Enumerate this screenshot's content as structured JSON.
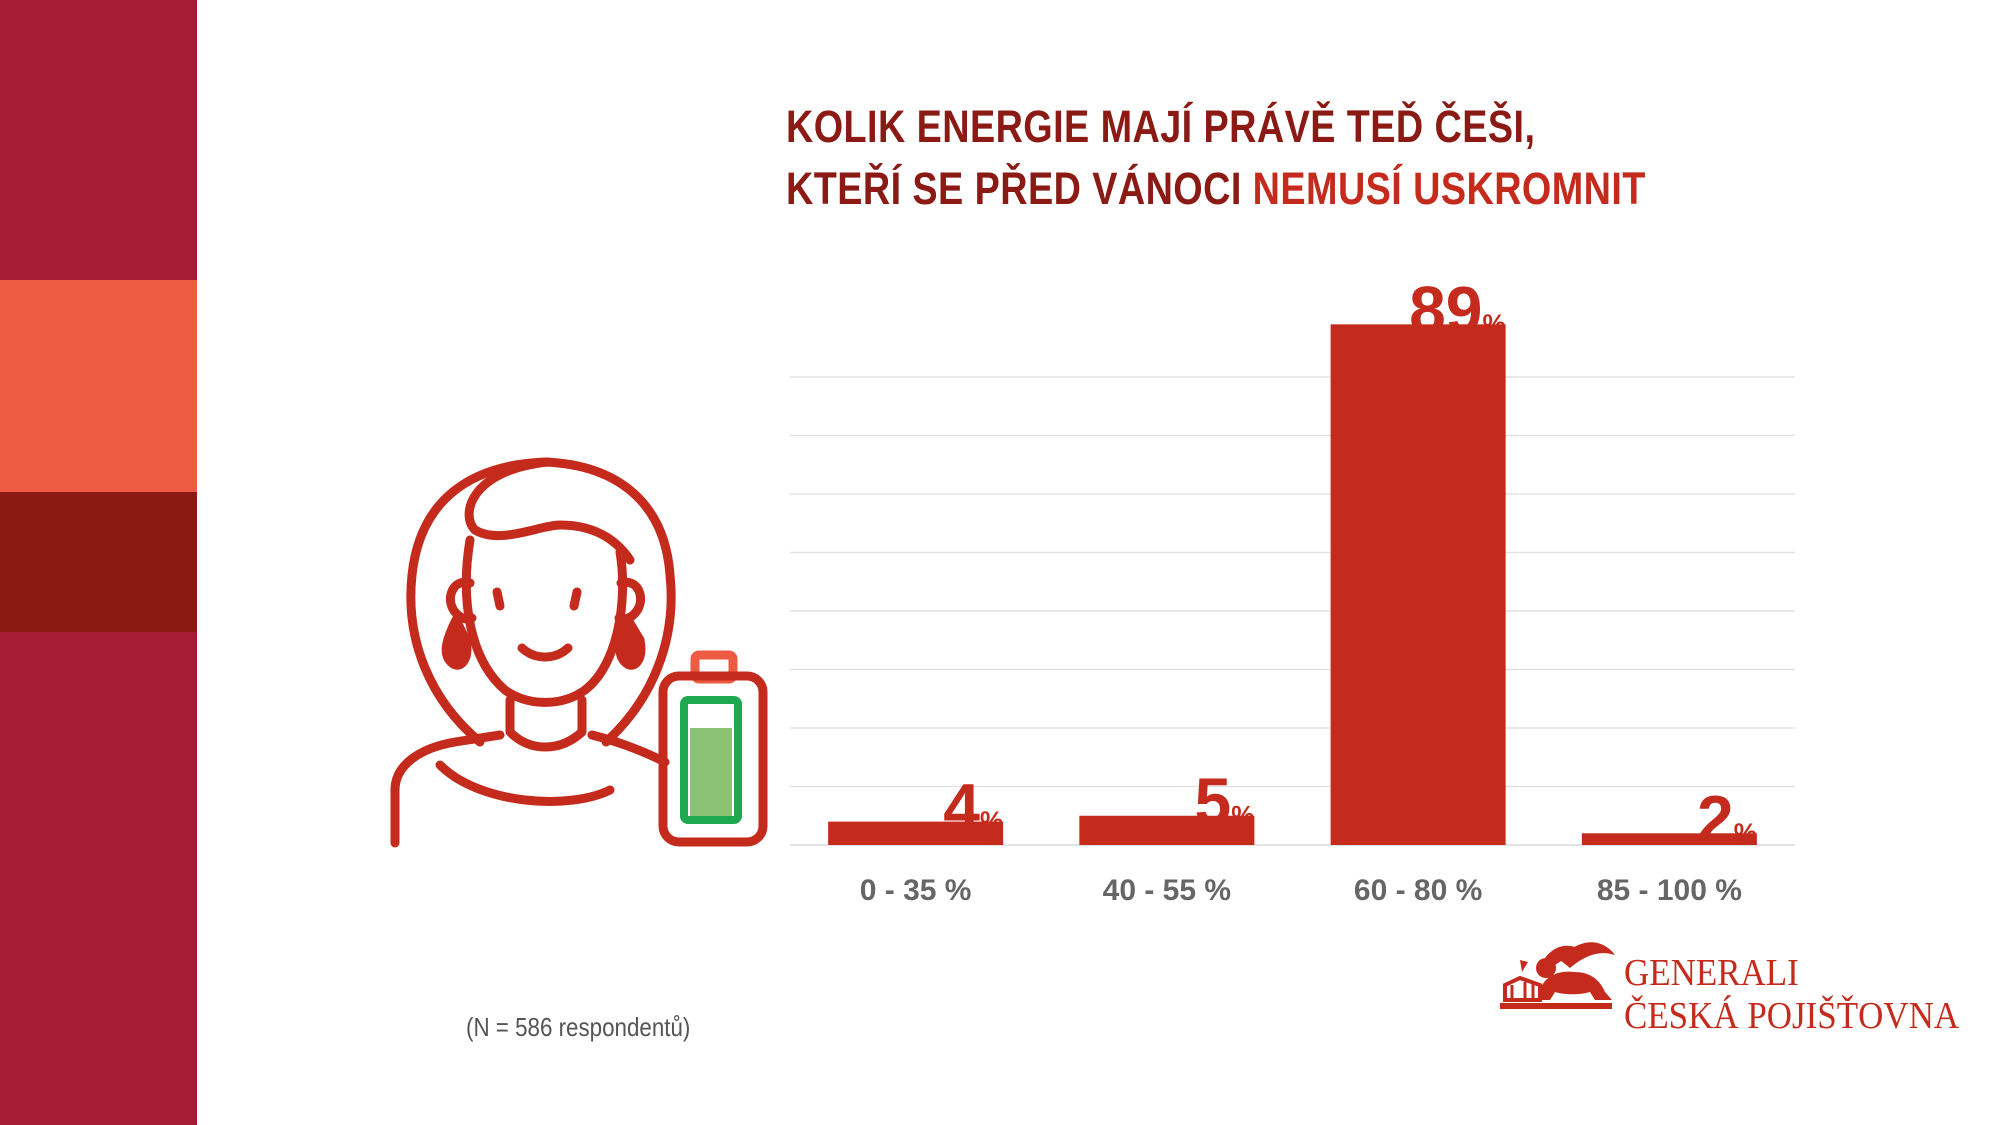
{
  "colors": {
    "stripe_top": "#A71C35",
    "stripe_orange": "#EC5B42",
    "stripe_dark": "#8A1A13",
    "stripe_bottom": "#A71C35",
    "title": "#8A1A13",
    "title_highlight": "#C42B1C",
    "bar": "#C42B1C",
    "axis_label": "#666666",
    "grid": "#E3E3E3",
    "icon": "#C42B1C",
    "battery_fill": "#8CC274",
    "battery_outline": "#1FA84F",
    "battery_cap": "#EC5B42"
  },
  "title": {
    "line1": "KOLIK ENERGIE MAJÍ PRÁVĚ TEĎ ČEŠI,",
    "line2_plain": "KTEŘÍ SE PŘED VÁNOCI ",
    "line2_highlight": "NEMUSÍ USKROMNIT"
  },
  "chart_data": {
    "type": "bar",
    "categories": [
      "0 - 35 %",
      "40 - 55 %",
      "60 - 80 %",
      "85 - 100 %"
    ],
    "values": [
      4,
      5,
      89,
      2
    ],
    "value_labels": [
      "4",
      "5",
      "89",
      "2"
    ],
    "unit_suffix": "%",
    "ylim": [
      0,
      80
    ],
    "grid": true,
    "xlabel": "",
    "ylabel": ""
  },
  "footnote": "(N = 586 respondentů)",
  "icons": [
    "woman-icon",
    "battery-icon",
    "lion-logo-icon"
  ],
  "logo": {
    "line1": "GENERALI",
    "line2": "ČESKÁ POJIŠŤOVNA"
  }
}
